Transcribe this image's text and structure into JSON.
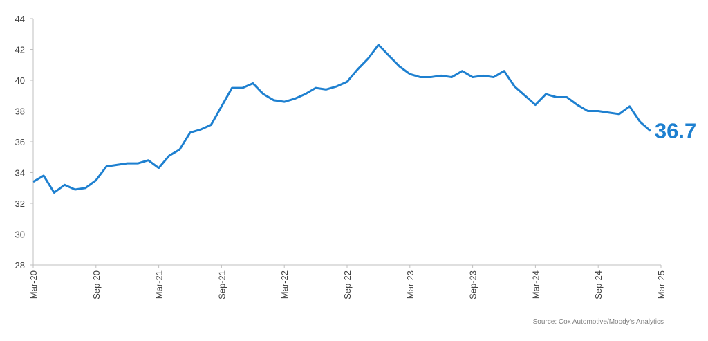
{
  "chart_data": {
    "type": "line",
    "source": "Source: Cox Automotive/Moody’s Analytics",
    "color": "#1e80d0",
    "ylim": [
      28,
      44
    ],
    "yticks": [
      28,
      30,
      32,
      34,
      36,
      38,
      40,
      42,
      44
    ],
    "grid": false,
    "categories": [
      "Mar-20",
      null,
      null,
      null,
      null,
      null,
      "Sep-20",
      null,
      null,
      null,
      null,
      null,
      "Mar-21",
      null,
      null,
      null,
      null,
      null,
      "Sep-21",
      null,
      null,
      null,
      null,
      null,
      "Mar-22",
      null,
      null,
      null,
      null,
      null,
      "Sep-22",
      null,
      null,
      null,
      null,
      null,
      "Mar-23",
      null,
      null,
      null,
      null,
      null,
      "Sep-23",
      null,
      null,
      null,
      null,
      null,
      "Mar-24",
      null,
      null,
      null,
      null,
      null,
      "Sep-24",
      null,
      null,
      null,
      null,
      null,
      "Mar-25"
    ],
    "values": [
      33.4,
      33.8,
      32.7,
      33.2,
      32.9,
      33.0,
      33.5,
      34.4,
      34.5,
      34.6,
      34.6,
      34.8,
      34.3,
      35.1,
      35.5,
      36.6,
      36.8,
      37.1,
      38.3,
      39.5,
      39.5,
      39.8,
      39.1,
      38.7,
      38.6,
      38.8,
      39.1,
      39.5,
      39.4,
      39.6,
      39.9,
      40.7,
      41.4,
      42.3,
      41.6,
      40.9,
      40.4,
      40.2,
      40.2,
      40.3,
      40.2,
      40.6,
      40.2,
      40.3,
      40.2,
      40.6,
      39.6,
      39.0,
      38.4,
      39.1,
      38.9,
      38.9,
      38.4,
      38.0,
      38.0,
      37.9,
      37.8,
      38.3,
      37.3,
      36.7,
      null
    ]
  }
}
